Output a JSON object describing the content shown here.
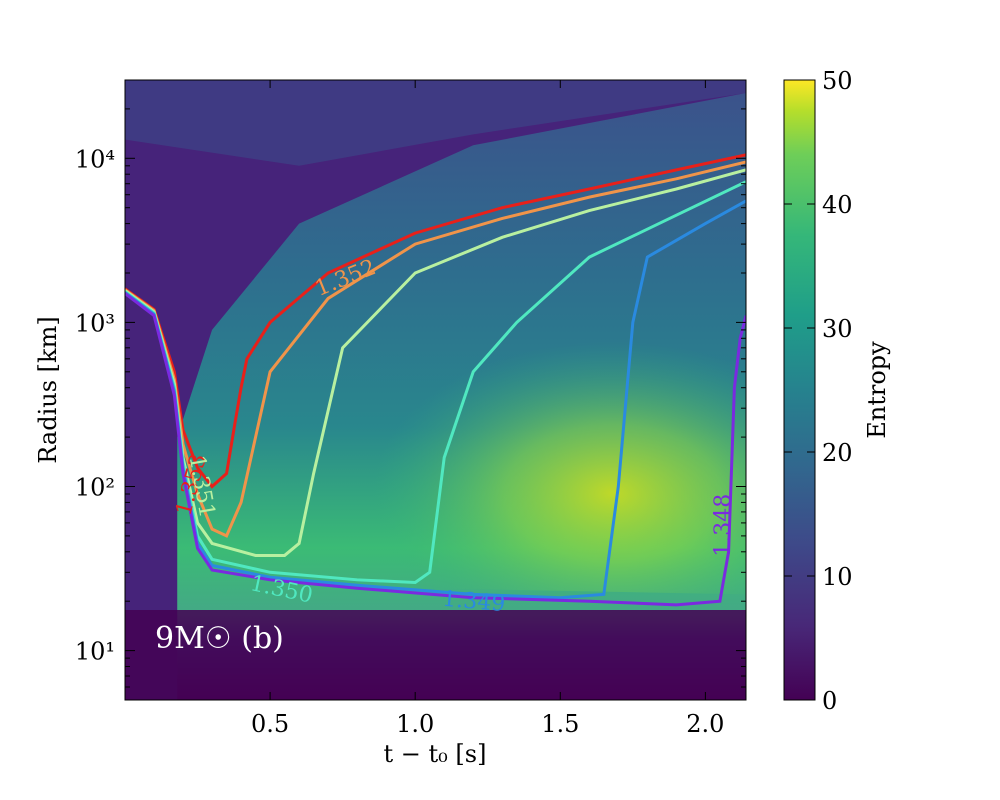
{
  "chart_data": {
    "type": "heatmap",
    "xlabel": "t − t₀ [s]",
    "ylabel": "Radius [km]",
    "xlim": [
      0.0,
      2.14
    ],
    "ylim_km": [
      5,
      30000
    ],
    "y_scale": "log",
    "x_ticks": [
      0.5,
      1.0,
      1.5,
      2.0
    ],
    "x_tick_labels": [
      "0.5",
      "1.0",
      "1.5",
      "2.0"
    ],
    "y_ticks": [
      10,
      100,
      1000,
      10000
    ],
    "y_tick_labels": [
      "10¹",
      "10²",
      "10³",
      "10⁴"
    ],
    "colorbar": {
      "label": "Entropy",
      "range": [
        0,
        50
      ],
      "ticks": [
        0,
        10,
        20,
        30,
        40,
        50
      ],
      "tick_labels": [
        "0",
        "10",
        "20",
        "30",
        "40",
        "50"
      ],
      "colormap": "viridis"
    },
    "annotation": "9M☉ (b)",
    "contours": [
      {
        "label": "1.353",
        "color": "#e8201a",
        "x": [
          0.0,
          0.1,
          0.17,
          0.2,
          0.25,
          0.3,
          0.35,
          0.38,
          0.4,
          0.42,
          0.5,
          0.7,
          1.0,
          1.3,
          1.6,
          1.9,
          2.14
        ],
        "y": [
          1600,
          1200,
          500,
          220,
          130,
          100,
          120,
          250,
          400,
          600,
          1000,
          2000,
          3500,
          5000,
          6500,
          8500,
          10500
        ]
      },
      {
        "label": "1.352",
        "color": "#f0944a",
        "x": [
          0.0,
          0.1,
          0.17,
          0.2,
          0.25,
          0.3,
          0.35,
          0.4,
          0.45,
          0.5,
          0.7,
          1.0,
          1.3,
          1.6,
          1.9,
          2.14
        ],
        "y": [
          1580,
          1180,
          450,
          180,
          90,
          55,
          50,
          80,
          200,
          500,
          1400,
          3000,
          4300,
          5800,
          7500,
          9500
        ]
      },
      {
        "label": "1.351",
        "color": "#b8f0a0",
        "x": [
          0.0,
          0.1,
          0.17,
          0.2,
          0.25,
          0.3,
          0.45,
          0.55,
          0.6,
          0.65,
          0.75,
          1.0,
          1.3,
          1.6,
          1.9,
          2.14
        ],
        "y": [
          1560,
          1160,
          420,
          150,
          60,
          45,
          38,
          38,
          45,
          120,
          700,
          2000,
          3300,
          4800,
          6500,
          8500
        ]
      },
      {
        "label": "1.350",
        "color": "#50e8c0",
        "x": [
          0.0,
          0.1,
          0.17,
          0.2,
          0.25,
          0.3,
          0.5,
          0.8,
          1.0,
          1.05,
          1.1,
          1.2,
          1.35,
          1.6,
          1.9,
          2.14
        ],
        "y": [
          1540,
          1140,
          400,
          140,
          50,
          36,
          30,
          27,
          26,
          30,
          150,
          500,
          1000,
          2500,
          4500,
          7200
        ]
      },
      {
        "label": "1.349",
        "color": "#2a8ae0",
        "x": [
          0.0,
          0.1,
          0.17,
          0.2,
          0.25,
          0.3,
          0.5,
          0.8,
          1.2,
          1.5,
          1.65,
          1.7,
          1.75,
          1.8,
          2.0,
          2.14
        ],
        "y": [
          1520,
          1120,
          380,
          130,
          45,
          33,
          28,
          25,
          22,
          21,
          22,
          100,
          1000,
          2500,
          4000,
          5500
        ]
      },
      {
        "label": "1.348",
        "color": "#7a2ae0",
        "x": [
          0.0,
          0.1,
          0.17,
          0.2,
          0.25,
          0.3,
          0.5,
          0.8,
          1.2,
          1.6,
          1.9,
          2.05,
          2.08,
          2.1,
          2.12,
          2.14
        ],
        "y": [
          1500,
          1100,
          360,
          120,
          42,
          31,
          27,
          24,
          21,
          20,
          19,
          20,
          40,
          400,
          800,
          1100
        ]
      }
    ]
  }
}
